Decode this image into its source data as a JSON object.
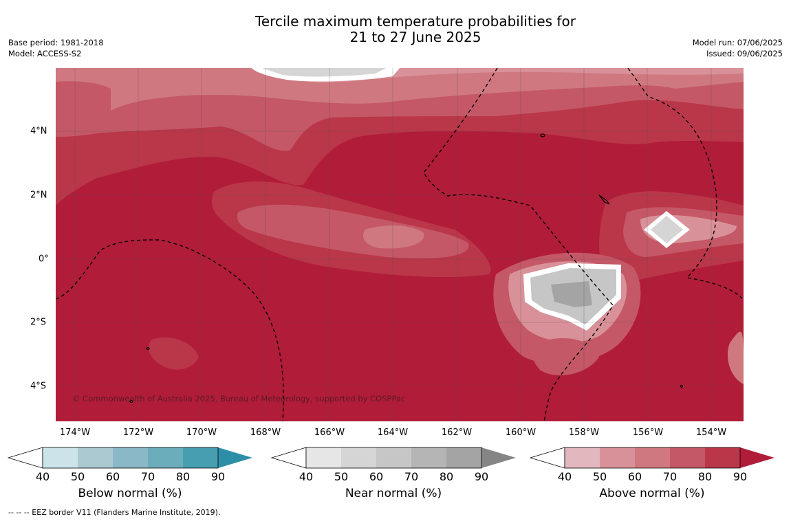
{
  "title": {
    "line1": "Tercile maximum temperature probabilities for",
    "line2": "21 to 27 June 2025"
  },
  "meta_left": {
    "base_period": "Base period: 1981-2018",
    "model": "Model: ACCESS-S2"
  },
  "meta_right": {
    "model_run": "Model run: 07/06/2025",
    "issued": "Issued: 09/06/2025"
  },
  "map": {
    "copyright": "© Commonwealth of Australia 2025, Bureau of Meteorology, supported by COSPPac",
    "lon_labels": [
      "174°W",
      "172°W",
      "170°W",
      "168°W",
      "166°W",
      "164°W",
      "162°W",
      "160°W",
      "158°W",
      "156°W",
      "154°W"
    ],
    "lat_labels": [
      "4°N",
      "2°N",
      "0°",
      "2°S",
      "4°S"
    ]
  },
  "colorbars": [
    {
      "label": "Below normal (%)",
      "ticks": [
        "40",
        "50",
        "60",
        "70",
        "80",
        "90"
      ],
      "colors": [
        "#cce3ea",
        "#aac9d0",
        "#8bb8c6",
        "#6cadbc",
        "#489eb1",
        "#2c8fa7"
      ]
    },
    {
      "label": "Near normal (%)",
      "ticks": [
        "40",
        "50",
        "60",
        "70",
        "80",
        "90"
      ],
      "colors": [
        "#e6e6e6",
        "#d5d5d5",
        "#c6c6c6",
        "#b5b5b5",
        "#a4a4a4",
        "#858585"
      ]
    },
    {
      "label": "Above normal (%)",
      "ticks": [
        "40",
        "50",
        "60",
        "70",
        "80",
        "90"
      ],
      "colors": [
        "#e2b7bd",
        "#d99199",
        "#cf7880",
        "#c45866",
        "#ba3649",
        "#b11c39"
      ]
    }
  ],
  "footer": "--  --  -- EEZ border V11 (Flanders Marine Institute, 2019)."
}
